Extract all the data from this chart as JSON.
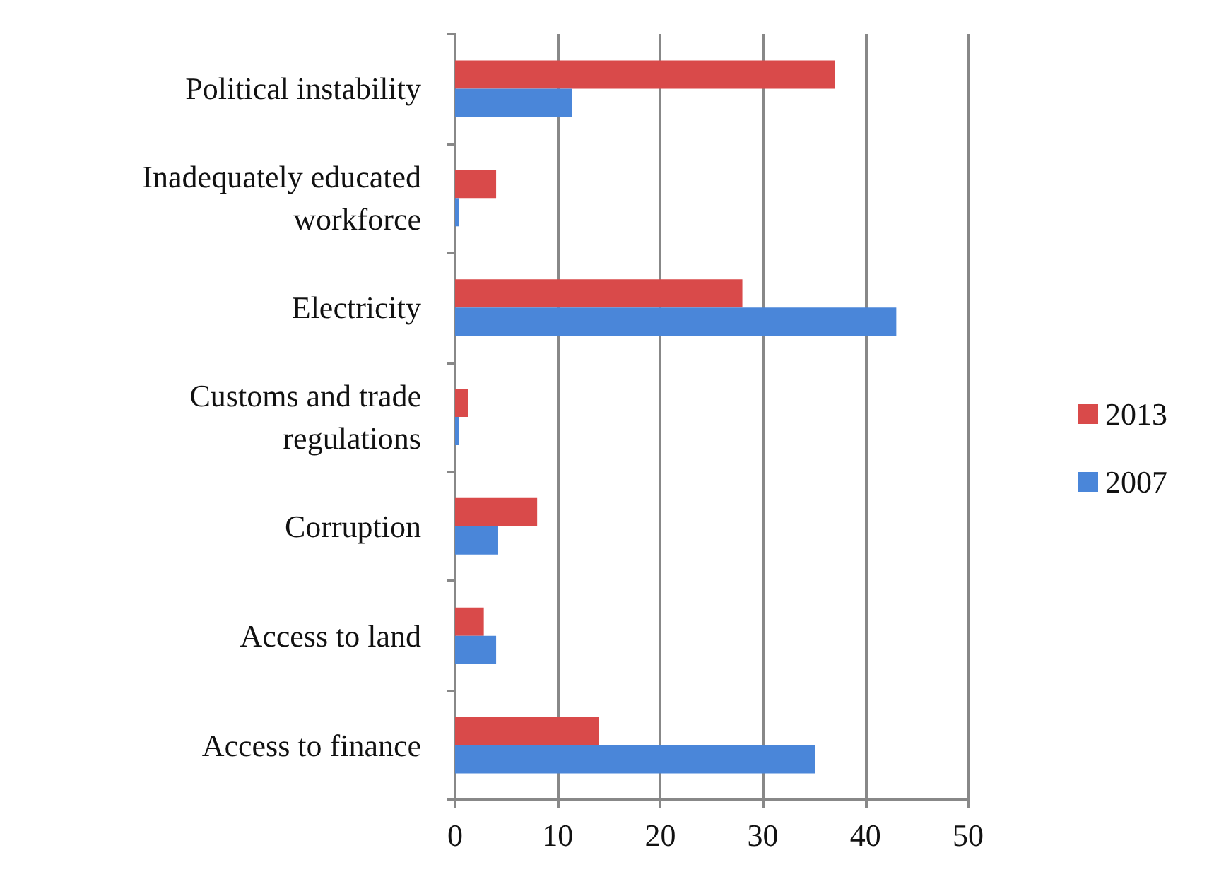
{
  "chart_data": {
    "type": "bar",
    "orientation": "horizontal",
    "categories": [
      "Political instability",
      "Inadequately educated\nworkforce",
      "Electricity",
      "Customs and trade\nregulations",
      "Corruption",
      "Access to land",
      "Access to finance"
    ],
    "series": [
      {
        "name": "2013",
        "color": "#d94a4a",
        "values": [
          37.0,
          4.0,
          28.0,
          1.3,
          8.0,
          2.8,
          14.0
        ]
      },
      {
        "name": "2007",
        "color": "#4a86d9",
        "values": [
          11.4,
          0.4,
          43.0,
          0.4,
          4.2,
          4.0,
          35.1
        ]
      }
    ],
    "xlim": [
      0,
      50
    ],
    "xticks": [
      0,
      10,
      20,
      30,
      40,
      50
    ],
    "grid": "x",
    "legend": "right"
  }
}
